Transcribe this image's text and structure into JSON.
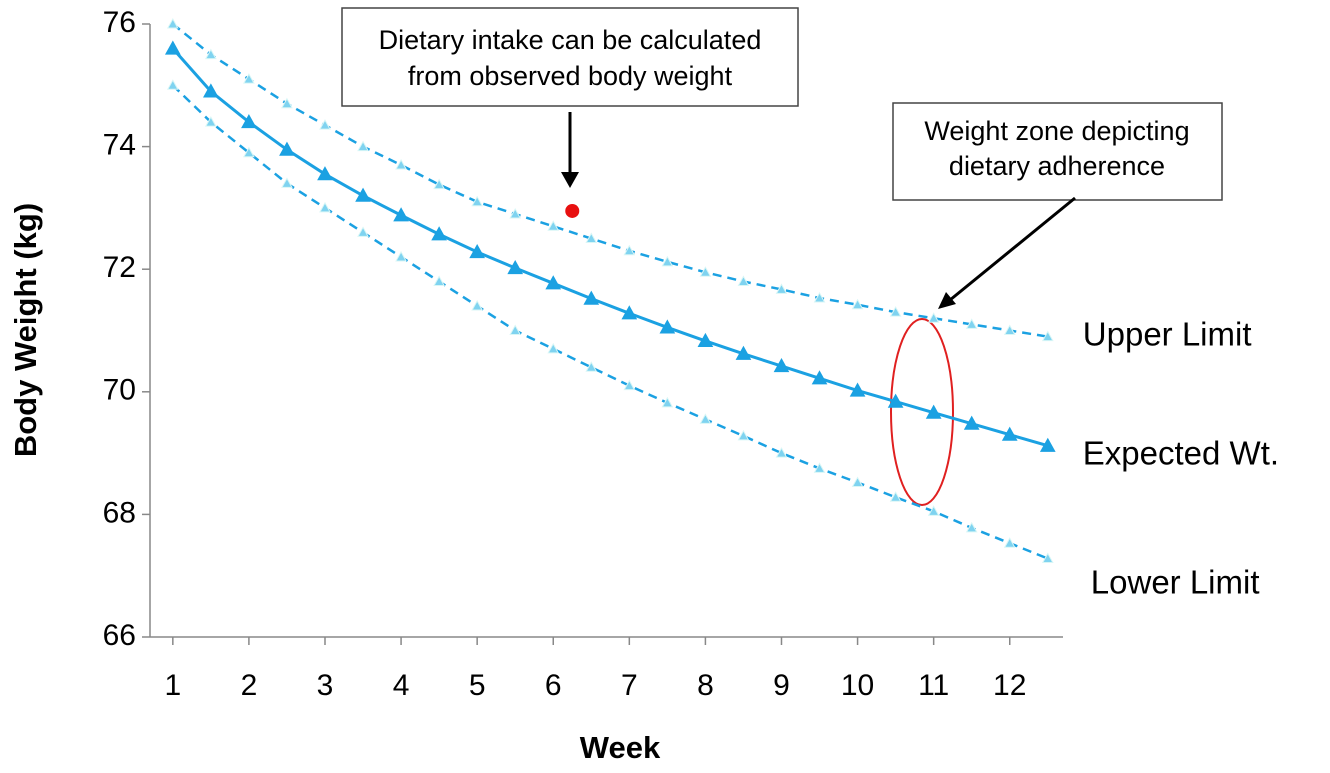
{
  "chart_data": {
    "type": "line",
    "x_label": "Week",
    "y_label": "Body Weight (kg)",
    "xlim": [
      0.7,
      12.7
    ],
    "xticks": [
      1,
      2,
      3,
      4,
      5,
      6,
      7,
      8,
      9,
      10,
      11,
      12
    ],
    "ylim": [
      66,
      76
    ],
    "yticks": [
      66,
      68,
      70,
      72,
      74,
      76
    ],
    "x": [
      1,
      1.5,
      2,
      2.5,
      3,
      3.5,
      4,
      4.5,
      5,
      5.5,
      6,
      6.5,
      7,
      7.5,
      8,
      8.5,
      9,
      9.5,
      10,
      10.5,
      11,
      11.5,
      12,
      12.5
    ],
    "series": [
      {
        "name": "Upper Limit",
        "color": "#1ba1e2",
        "dashed": true,
        "values": [
          76.0,
          75.5,
          75.1,
          74.7,
          74.35,
          74.0,
          73.7,
          73.38,
          73.1,
          72.9,
          72.7,
          72.5,
          72.3,
          72.12,
          71.95,
          71.8,
          71.67,
          71.53,
          71.42,
          71.3,
          71.2,
          71.1,
          71.0,
          70.9
        ]
      },
      {
        "name": "Expected Wt.",
        "color": "#1ba1e2",
        "dashed": false,
        "values": [
          75.6,
          74.9,
          74.4,
          73.95,
          73.55,
          73.2,
          72.88,
          72.57,
          72.28,
          72.02,
          71.77,
          71.52,
          71.28,
          71.05,
          70.83,
          70.62,
          70.42,
          70.22,
          70.02,
          69.84,
          69.66,
          69.48,
          69.3,
          69.12
        ]
      },
      {
        "name": "Lower Limit",
        "color": "#1ba1e2",
        "dashed": true,
        "values": [
          75.0,
          74.4,
          73.9,
          73.4,
          73.0,
          72.6,
          72.2,
          71.8,
          71.4,
          71.0,
          70.7,
          70.4,
          70.1,
          69.82,
          69.55,
          69.28,
          69.0,
          68.75,
          68.52,
          68.28,
          68.05,
          67.78,
          67.53,
          67.28
        ]
      }
    ],
    "observed_point": {
      "x": 6.25,
      "y": 72.95,
      "color": "#e81010"
    },
    "annotations": [
      {
        "lines": [
          "Dietary intake can be calculated",
          "from observed body weight"
        ]
      },
      {
        "lines": [
          "Weight zone depicting",
          "dietary adherence"
        ]
      }
    ]
  }
}
